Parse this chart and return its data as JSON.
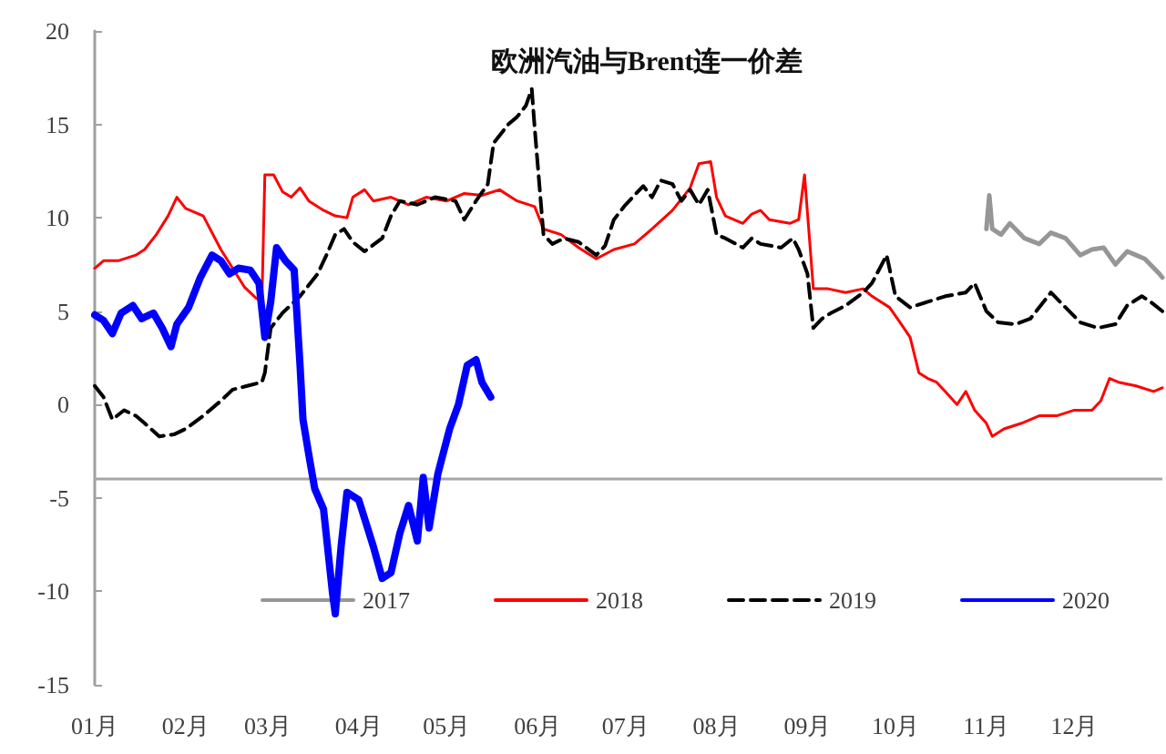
{
  "chart_data": {
    "type": "line",
    "title": "欧洲汽油与Brent连一价差",
    "xlim": [
      "--01-01",
      "--12-31"
    ],
    "xticks": [
      {
        "value": "--01-01",
        "label": "01月"
      },
      {
        "value": "--02-01",
        "label": "02月"
      },
      {
        "value": "--03-01",
        "label": "03月"
      },
      {
        "value": "--04-01",
        "label": "04月"
      },
      {
        "value": "--05-01",
        "label": "05月"
      },
      {
        "value": "--06-01",
        "label": "06月"
      },
      {
        "value": "--07-01",
        "label": "07月"
      },
      {
        "value": "--08-01",
        "label": "08月"
      },
      {
        "value": "--09-01",
        "label": "09月"
      },
      {
        "value": "--10-01",
        "label": "10月"
      },
      {
        "value": "--11-01",
        "label": "11月"
      },
      {
        "value": "--12-01",
        "label": "12月"
      }
    ],
    "ylim": [
      -15,
      20
    ],
    "yticks": [
      -15,
      -10,
      -5,
      0,
      5,
      10,
      15,
      20
    ],
    "grid": false,
    "legend": "bottom",
    "marker": "none",
    "ref_lines": [
      {
        "axis": "y",
        "value": -4,
        "color": "#a6a6a6"
      }
    ],
    "series": [
      {
        "name": "2017",
        "color": "#969696",
        "x": [
          "--11-01",
          "--11-02",
          "--11-03",
          "--11-06",
          "--11-09",
          "--11-14",
          "--11-19",
          "--11-23",
          "--11-28",
          "--12-03",
          "--12-07",
          "--12-11",
          "--12-15",
          "--12-19",
          "--12-22",
          "--12-25",
          "--12-30",
          "--12-31"
        ],
        "values": [
          9.4,
          11.2,
          9.4,
          9.1,
          9.7,
          8.9,
          8.6,
          9.2,
          8.9,
          8.0,
          8.3,
          8.4,
          7.5,
          8.2,
          8.0,
          7.8,
          7.0,
          6.8
        ]
      },
      {
        "name": "2018",
        "color": "#ff0000",
        "x": [
          "--01-01",
          "--01-04",
          "--01-09",
          "--01-15",
          "--01-18",
          "--01-22",
          "--01-26",
          "--01-29",
          "--02-01",
          "--02-07",
          "--02-13",
          "--02-17",
          "--02-21",
          "--02-25",
          "--02-27",
          "--02-28",
          "--03-03",
          "--03-06",
          "--03-09",
          "--03-12",
          "--03-15",
          "--03-20",
          "--03-24",
          "--03-28",
          "--03-30",
          "--04-03",
          "--04-06",
          "--04-12",
          "--04-18",
          "--04-24",
          "--05-01",
          "--05-07",
          "--05-13",
          "--05-19",
          "--05-25",
          "--05-31",
          "--06-03",
          "--06-09",
          "--06-15",
          "--06-21",
          "--06-27",
          "--07-04",
          "--07-10",
          "--07-17",
          "--07-23",
          "--07-26",
          "--07-30",
          "--08-01",
          "--08-04",
          "--08-10",
          "--08-13",
          "--08-16",
          "--08-19",
          "--08-26",
          "--08-29",
          "--08-31",
          "--09-03",
          "--09-08",
          "--09-14",
          "--09-20",
          "--09-23",
          "--09-29",
          "--10-03",
          "--10-06",
          "--10-09",
          "--10-12",
          "--10-15",
          "--10-18",
          "--10-22",
          "--10-25",
          "--10-28",
          "--11-01",
          "--11-03",
          "--11-07",
          "--11-13",
          "--11-19",
          "--11-25",
          "--12-01",
          "--12-07",
          "--12-10",
          "--12-13",
          "--12-16",
          "--12-22",
          "--12-28",
          "--12-31"
        ],
        "values": [
          7.3,
          7.7,
          7.7,
          8.0,
          8.3,
          9.1,
          10.1,
          11.1,
          10.5,
          10.1,
          8.3,
          7.3,
          6.3,
          5.7,
          5.5,
          12.3,
          12.3,
          11.4,
          11.1,
          11.6,
          10.9,
          10.4,
          10.1,
          10.0,
          11.1,
          11.5,
          10.9,
          11.1,
          10.7,
          11.1,
          10.9,
          11.3,
          11.2,
          11.5,
          10.9,
          10.6,
          9.4,
          9.1,
          8.4,
          7.8,
          8.3,
          8.6,
          9.4,
          10.4,
          11.6,
          12.9,
          13.0,
          11.1,
          10.1,
          9.7,
          10.2,
          10.4,
          9.9,
          9.7,
          9.9,
          12.3,
          6.2,
          6.2,
          6.0,
          6.2,
          5.8,
          5.2,
          4.3,
          3.6,
          1.7,
          1.4,
          1.2,
          0.7,
          0,
          0.7,
          -0.3,
          -1.0,
          -1.7,
          -1.3,
          -1.0,
          -0.6,
          -0.6,
          -0.3,
          -0.3,
          0.2,
          1.4,
          1.2,
          1.0,
          0.7,
          0.9
        ]
      },
      {
        "name": "2019",
        "color": "#000000",
        "line_style": "dashed",
        "x": [
          "--01-01",
          "--01-04",
          "--01-07",
          "--01-11",
          "--01-15",
          "--01-18",
          "--01-23",
          "--01-28",
          "--02-01",
          "--02-07",
          "--02-13",
          "--02-17",
          "--02-22",
          "--02-27",
          "--02-28",
          "--03-02",
          "--03-06",
          "--03-12",
          "--03-18",
          "--03-21",
          "--03-24",
          "--03-27",
          "--03-30",
          "--04-03",
          "--04-09",
          "--04-12",
          "--04-15",
          "--04-21",
          "--04-27",
          "--05-04",
          "--05-07",
          "--05-11",
          "--05-15",
          "--05-17",
          "--05-22",
          "--05-25",
          "--05-28",
          "--05-30",
          "--05-31",
          "--06-03",
          "--06-06",
          "--06-10",
          "--06-15",
          "--06-21",
          "--06-24",
          "--06-27",
          "--07-01",
          "--07-07",
          "--07-10",
          "--07-13",
          "--07-17",
          "--07-20",
          "--07-23",
          "--07-26",
          "--07-29",
          "--08-01",
          "--08-04",
          "--08-10",
          "--08-13",
          "--08-16",
          "--08-23",
          "--08-27",
          "--08-29",
          "--09-01",
          "--09-03",
          "--09-06",
          "--09-09",
          "--09-14",
          "--09-20",
          "--09-23",
          "--09-28",
          "--10-01",
          "--10-06",
          "--10-12",
          "--10-18",
          "--10-25",
          "--10-28",
          "--11-01",
          "--11-05",
          "--11-11",
          "--11-16",
          "--11-23",
          "--11-28",
          "--12-03",
          "--12-09",
          "--12-15",
          "--12-19",
          "--12-24",
          "--12-27",
          "--12-31"
        ],
        "values": [
          1.0,
          0.4,
          -0.8,
          -0.3,
          -0.6,
          -1.0,
          -1.7,
          -1.6,
          -1.3,
          -0.6,
          0.2,
          0.8,
          1.0,
          1.2,
          1.7,
          4.1,
          4.9,
          5.8,
          7.0,
          8.0,
          9.1,
          9.4,
          8.7,
          8.2,
          8.9,
          10.1,
          10.9,
          10.7,
          11.1,
          10.9,
          9.9,
          10.9,
          11.8,
          14.0,
          15.0,
          15.4,
          16.0,
          16.9,
          14.8,
          9.1,
          8.6,
          8.9,
          8.7,
          8.0,
          8.5,
          9.9,
          10.7,
          11.7,
          11.1,
          12.0,
          11.8,
          10.9,
          11.5,
          10.7,
          11.5,
          9.1,
          8.9,
          8.4,
          8.9,
          8.6,
          8.4,
          8.9,
          8.3,
          7.0,
          4.1,
          4.6,
          4.9,
          5.3,
          6.0,
          6.5,
          8.0,
          5.8,
          5.2,
          5.5,
          5.8,
          6.0,
          6.5,
          5.0,
          4.4,
          4.3,
          4.6,
          6.0,
          5.2,
          4.4,
          4.1,
          4.3,
          5.3,
          5.8,
          5.5,
          5.0
        ]
      },
      {
        "name": "2020",
        "color": "#0000ff",
        "x": [
          "--01-01",
          "--01-04",
          "--01-07",
          "--01-10",
          "--01-14",
          "--01-17",
          "--01-21",
          "--01-24",
          "--01-27",
          "--01-29",
          "--02-02",
          "--02-06",
          "--02-10",
          "--02-13",
          "--02-16",
          "--02-19",
          "--02-23",
          "--02-26",
          "--02-28",
          "--03-02",
          "--03-04",
          "--03-07",
          "--03-10",
          "--03-12",
          "--03-13",
          "--03-15",
          "--03-17",
          "--03-20",
          "--03-23",
          "--03-24",
          "--03-26",
          "--03-28",
          "--04-01",
          "--04-03",
          "--04-06",
          "--04-09",
          "--04-12",
          "--04-15",
          "--04-18",
          "--04-21",
          "--04-23",
          "--04-25",
          "--04-28",
          "--05-02",
          "--05-05",
          "--05-08",
          "--05-11",
          "--05-13",
          "--05-16"
        ],
        "values": [
          4.8,
          4.5,
          3.8,
          4.9,
          5.3,
          4.6,
          4.9,
          4.1,
          3.1,
          4.3,
          5.2,
          6.8,
          8.0,
          7.7,
          7.0,
          7.3,
          7.2,
          6.5,
          3.6,
          5.5,
          8.4,
          7.7,
          7.2,
          2.1,
          -0.8,
          -2.7,
          -4.5,
          -5.6,
          -10.0,
          -11.2,
          -7.6,
          -4.7,
          -5.1,
          -6.1,
          -7.6,
          -9.3,
          -9.0,
          -6.9,
          -5.4,
          -7.3,
          -3.9,
          -6.6,
          -3.7,
          -1.3,
          0,
          2.1,
          2.4,
          1.2,
          0.4
        ]
      }
    ]
  }
}
